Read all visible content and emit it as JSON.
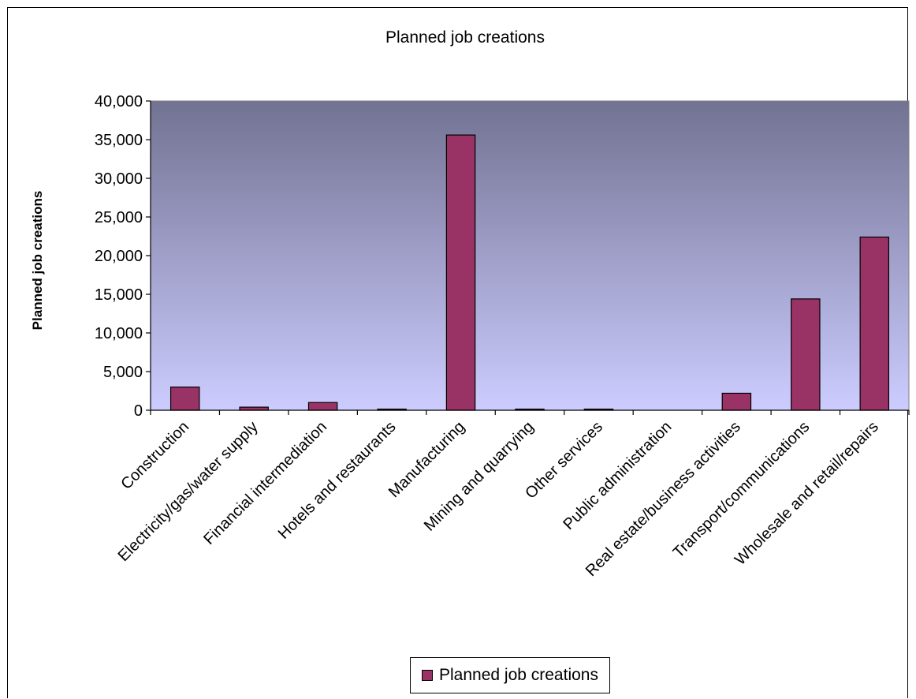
{
  "chart_data": {
    "type": "bar",
    "title": "Planned job creations",
    "ylabel": "Planned job creations",
    "xlabel": "",
    "ylim": [
      0,
      40000
    ],
    "yticks": [
      "0",
      "5,000",
      "10,000",
      "15,000",
      "20,000",
      "25,000",
      "30,000",
      "35,000",
      "40,000"
    ],
    "categories": [
      "Construction",
      "Electricity/gas/water supply",
      "Financial intermediation",
      "Hotels and restaurants",
      "Manufacturing",
      "Mining and quarrying",
      "Other services",
      "Public administration",
      "Real estate/business activities",
      "Transport/communications",
      "Wholesale and retail/repairs"
    ],
    "series": [
      {
        "name": "Planned job creations",
        "color": "#993366",
        "values": [
          3000,
          400,
          1000,
          150,
          35600,
          150,
          150,
          0,
          2200,
          14400,
          22400
        ]
      }
    ],
    "legend": "bottom-center",
    "grid": false,
    "plot_background": "gradient #727292 to #ccccff"
  }
}
